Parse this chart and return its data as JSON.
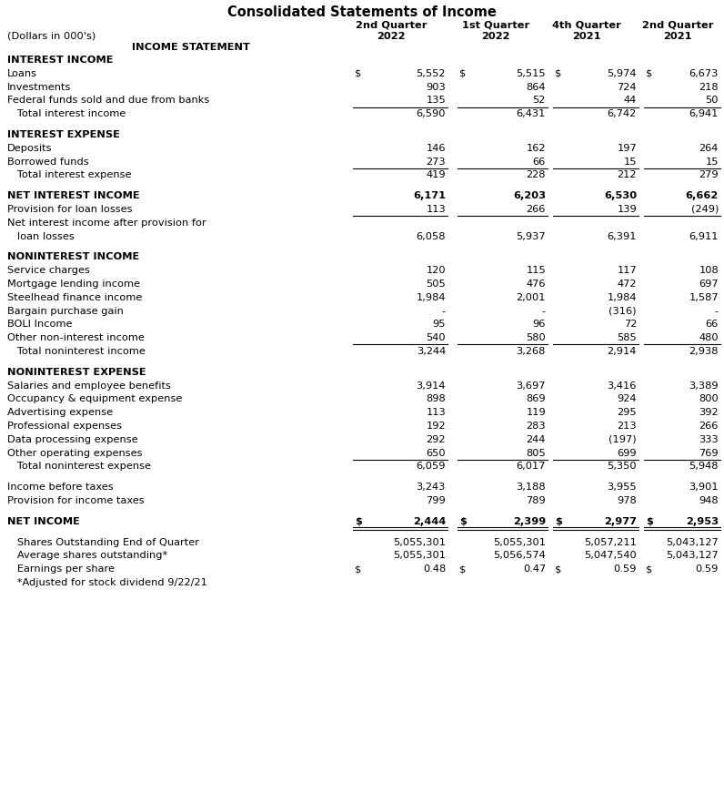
{
  "title": "Consolidated Statements of Income",
  "col_headers_line1": [
    "2nd Quarter",
    "1st Quarter",
    "4th Quarter",
    "2nd Quarter"
  ],
  "col_headers_line2": [
    "2022",
    "2022",
    "2021",
    "2021"
  ],
  "dollars_in": "(Dollars in 000's)",
  "income_statement": "INCOME STATEMENT",
  "rows": [
    {
      "label": "INTEREST INCOME",
      "values": [
        "",
        "",
        "",
        ""
      ],
      "style": "bold",
      "spacer_before": false
    },
    {
      "label": "Loans",
      "values": [
        "5,552",
        "5,515",
        "5,974",
        "6,673"
      ],
      "style": "normal",
      "dollar_row": true
    },
    {
      "label": "Investments",
      "values": [
        "903",
        "864",
        "724",
        "218"
      ],
      "style": "normal"
    },
    {
      "label": "Federal funds sold and due from banks",
      "values": [
        "135",
        "52",
        "44",
        "50"
      ],
      "style": "normal",
      "underline": true
    },
    {
      "label": "   Total interest income",
      "values": [
        "6,590",
        "6,431",
        "6,742",
        "6,941"
      ],
      "style": "normal",
      "indent": true
    },
    {
      "label": "",
      "values": [
        "",
        "",
        "",
        ""
      ],
      "style": "spacer"
    },
    {
      "label": "INTEREST EXPENSE",
      "values": [
        "",
        "",
        "",
        ""
      ],
      "style": "bold"
    },
    {
      "label": "Deposits",
      "values": [
        "146",
        "162",
        "197",
        "264"
      ],
      "style": "normal"
    },
    {
      "label": "Borrowed funds",
      "values": [
        "273",
        "66",
        "15",
        "15"
      ],
      "style": "normal",
      "underline": true
    },
    {
      "label": "   Total interest expense",
      "values": [
        "419",
        "228",
        "212",
        "279"
      ],
      "style": "normal",
      "indent": true
    },
    {
      "label": "",
      "values": [
        "",
        "",
        "",
        ""
      ],
      "style": "spacer"
    },
    {
      "label": "NET INTEREST INCOME",
      "values": [
        "6,171",
        "6,203",
        "6,530",
        "6,662"
      ],
      "style": "bold"
    },
    {
      "label": "Provision for loan losses",
      "values": [
        "113",
        "266",
        "139",
        "(249)"
      ],
      "style": "normal",
      "underline": true
    },
    {
      "label": "Net interest income after provision for",
      "values": [
        "",
        "",
        "",
        ""
      ],
      "style": "normal"
    },
    {
      "label": "   loan losses",
      "values": [
        "6,058",
        "5,937",
        "6,391",
        "6,911"
      ],
      "style": "normal",
      "indent": true
    },
    {
      "label": "",
      "values": [
        "",
        "",
        "",
        ""
      ],
      "style": "spacer"
    },
    {
      "label": "NONINTEREST INCOME",
      "values": [
        "",
        "",
        "",
        ""
      ],
      "style": "bold"
    },
    {
      "label": "Service charges",
      "values": [
        "120",
        "115",
        "117",
        "108"
      ],
      "style": "normal"
    },
    {
      "label": "Mortgage lending income",
      "values": [
        "505",
        "476",
        "472",
        "697"
      ],
      "style": "normal"
    },
    {
      "label": "Steelhead finance income",
      "values": [
        "1,984",
        "2,001",
        "1,984",
        "1,587"
      ],
      "style": "normal"
    },
    {
      "label": "Bargain purchase gain",
      "values": [
        "-",
        "-",
        "(316)",
        "-"
      ],
      "style": "normal"
    },
    {
      "label": "BOLI Income",
      "values": [
        "95",
        "96",
        "72",
        "66"
      ],
      "style": "normal"
    },
    {
      "label": "Other non-interest income",
      "values": [
        "540",
        "580",
        "585",
        "480"
      ],
      "style": "normal",
      "underline": true
    },
    {
      "label": "   Total noninterest income",
      "values": [
        "3,244",
        "3,268",
        "2,914",
        "2,938"
      ],
      "style": "normal",
      "indent": true
    },
    {
      "label": "",
      "values": [
        "",
        "",
        "",
        ""
      ],
      "style": "spacer"
    },
    {
      "label": "NONINTEREST EXPENSE",
      "values": [
        "",
        "",
        "",
        ""
      ],
      "style": "bold"
    },
    {
      "label": "Salaries and employee benefits",
      "values": [
        "3,914",
        "3,697",
        "3,416",
        "3,389"
      ],
      "style": "normal"
    },
    {
      "label": "Occupancy & equipment expense",
      "values": [
        "898",
        "869",
        "924",
        "800"
      ],
      "style": "normal"
    },
    {
      "label": "Advertising expense",
      "values": [
        "113",
        "119",
        "295",
        "392"
      ],
      "style": "normal"
    },
    {
      "label": "Professional expenses",
      "values": [
        "192",
        "283",
        "213",
        "266"
      ],
      "style": "normal"
    },
    {
      "label": "Data processing expense",
      "values": [
        "292",
        "244",
        "(197)",
        "333"
      ],
      "style": "normal"
    },
    {
      "label": "Other operating expenses",
      "values": [
        "650",
        "805",
        "699",
        "769"
      ],
      "style": "normal",
      "underline": true
    },
    {
      "label": "   Total noninterest expense",
      "values": [
        "6,059",
        "6,017",
        "5,350",
        "5,948"
      ],
      "style": "normal",
      "indent": true
    },
    {
      "label": "",
      "values": [
        "",
        "",
        "",
        ""
      ],
      "style": "spacer"
    },
    {
      "label": "Income before taxes",
      "values": [
        "3,243",
        "3,188",
        "3,955",
        "3,901"
      ],
      "style": "normal"
    },
    {
      "label": "Provision for income taxes",
      "values": [
        "799",
        "789",
        "978",
        "948"
      ],
      "style": "normal"
    },
    {
      "label": "",
      "values": [
        "",
        "",
        "",
        ""
      ],
      "style": "spacer"
    },
    {
      "label": "NET INCOME",
      "values": [
        "2,444",
        "2,399",
        "2,977",
        "2,953"
      ],
      "style": "bold",
      "double_underline": true,
      "dollar_row": true
    },
    {
      "label": "",
      "values": [
        "",
        "",
        "",
        ""
      ],
      "style": "spacer"
    },
    {
      "label": "   Shares Outstanding End of Quarter",
      "values": [
        "5,055,301",
        "5,055,301",
        "5,057,211",
        "5,043,127"
      ],
      "style": "normal",
      "indent": true
    },
    {
      "label": "   Average shares outstanding*",
      "values": [
        "5,055,301",
        "5,056,574",
        "5,047,540",
        "5,043,127"
      ],
      "style": "normal",
      "indent": true
    },
    {
      "label": "   Earnings per share",
      "values": [
        "0.48",
        "0.47",
        "0.59",
        "0.59"
      ],
      "style": "normal",
      "dollar_row": true,
      "indent": true
    },
    {
      "label": "   *Adjusted for stock dividend 9/22/21",
      "values": [
        "",
        "",
        "",
        ""
      ],
      "style": "normal"
    }
  ],
  "bg_color": "#ffffff",
  "text_color": "#000000",
  "font_size": 8.2,
  "title_font_size": 10.5,
  "header_font_size": 8.2
}
